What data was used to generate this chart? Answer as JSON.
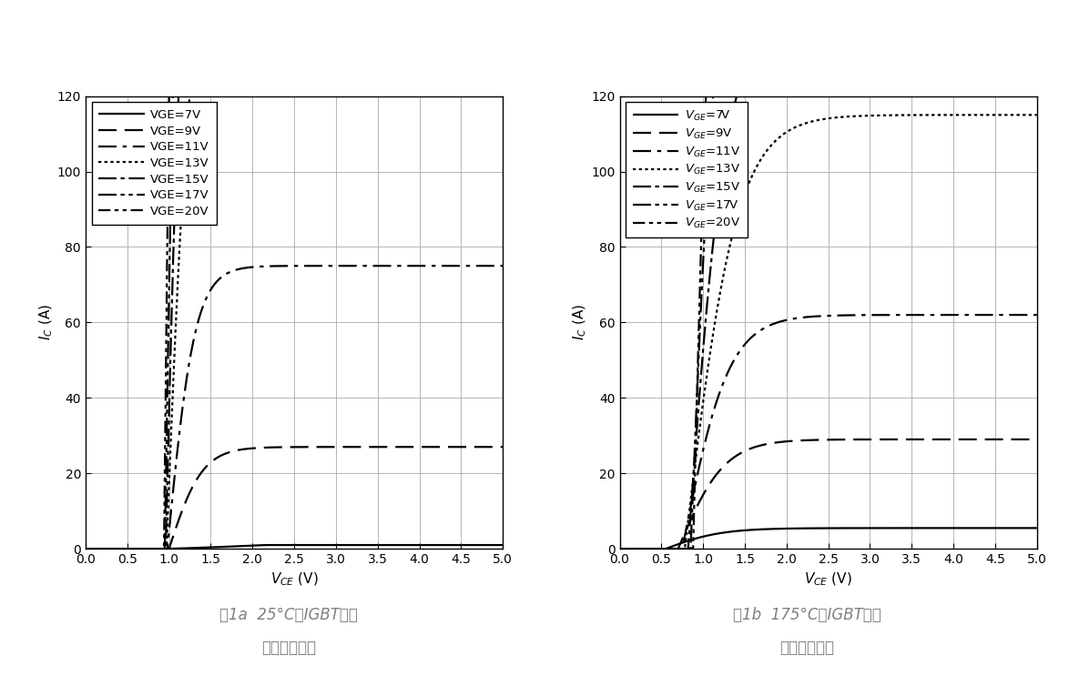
{
  "fig1a_title_line1": "图1a  25°C下IGBT典型",
  "fig1a_title_line2": "输出特性曲线",
  "fig1b_title_line1": "图1b  175°C下IGBT典型",
  "fig1b_title_line2": "输出特性曲线",
  "xlabel": "$V_{CE}$ (V)",
  "ylabel": "$I_C$ (A)",
  "xlim": [
    0.0,
    5.0
  ],
  "ylim": [
    0,
    120
  ],
  "xticks": [
    0.0,
    0.5,
    1.0,
    1.5,
    2.0,
    2.5,
    3.0,
    3.5,
    4.0,
    4.5,
    5.0
  ],
  "yticks": [
    0,
    20,
    40,
    60,
    80,
    100,
    120
  ],
  "legend_labels_a": [
    "VGE=7V",
    "VGE=9V",
    "VGE=11V",
    "VGE=13V",
    "VGE=15V",
    "VGE=17V",
    "VGE=20V"
  ],
  "legend_labels_b": [
    "$V_{GE}$=7V",
    "$V_{GE}$=9V",
    "$V_{GE}$=11V",
    "$V_{GE}$=13V",
    "$V_{GE}$=15V",
    "$V_{GE}$=17V",
    "$V_{GE}$=20V"
  ],
  "color": "black",
  "caption_color": "#808080"
}
